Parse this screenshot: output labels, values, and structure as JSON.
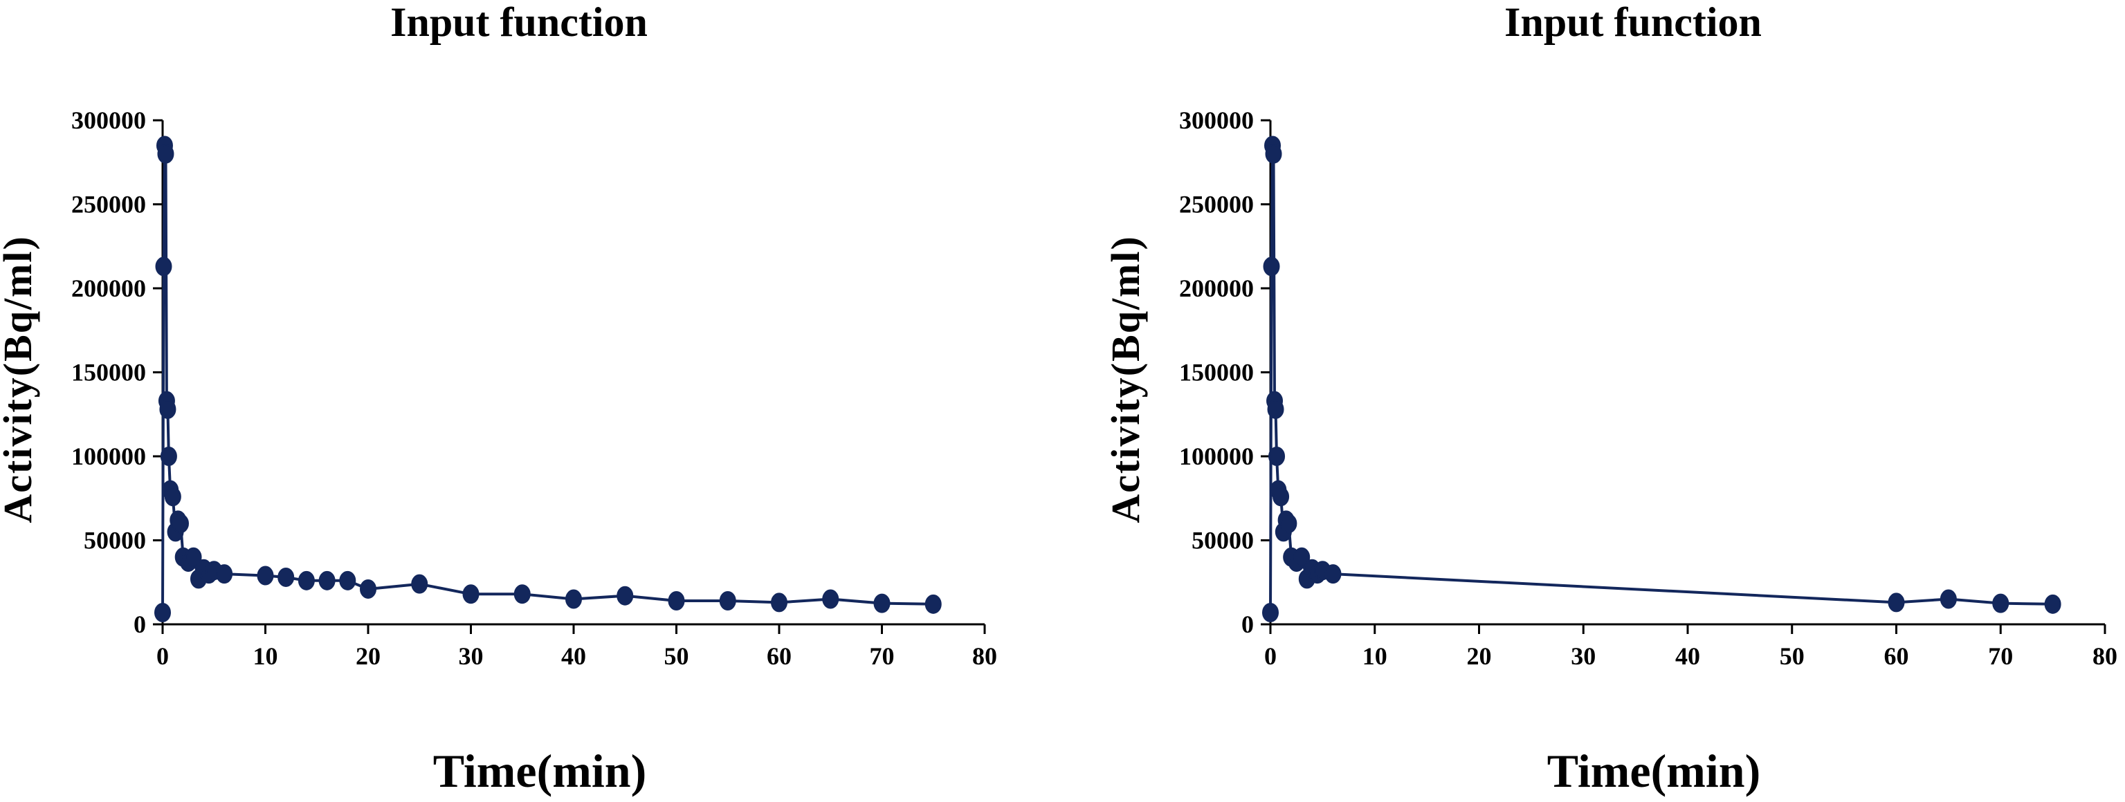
{
  "chart_data": [
    {
      "type": "line",
      "title": "Input function",
      "xlabel": "Time(min)",
      "ylabel": "Activity(Bq/ml)",
      "xlim": [
        0,
        80
      ],
      "ylim": [
        0,
        300000
      ],
      "xticks": [
        "0",
        "10",
        "20",
        "30",
        "40",
        "50",
        "60",
        "70",
        "80"
      ],
      "yticks": [
        "0",
        "50000",
        "100000",
        "150000",
        "200000",
        "250000",
        "300000"
      ],
      "grid": false,
      "colors": {
        "series": "#13275c"
      },
      "series": [
        {
          "x": [
            0,
            0.1,
            0.2,
            0.3,
            0.4,
            0.5,
            0.6,
            0.75,
            1,
            1.25,
            1.5,
            1.75,
            2,
            2.5,
            3,
            3.5,
            4,
            4.5,
            5,
            6,
            10,
            12,
            14,
            16,
            18,
            20,
            25,
            30,
            35,
            40,
            45,
            50,
            55,
            60,
            65,
            70,
            75
          ],
          "y": [
            7000,
            213000,
            285000,
            280000,
            133000,
            128000,
            100000,
            80000,
            76000,
            55000,
            62000,
            60000,
            40000,
            37000,
            40000,
            27000,
            33000,
            30000,
            32000,
            30000,
            29000,
            28000,
            26000,
            26000,
            26000,
            21000,
            24000,
            18000,
            18000,
            15000,
            17000,
            14000,
            14000,
            13000,
            15000,
            12500,
            12000
          ]
        }
      ]
    },
    {
      "type": "line",
      "title": "Input function",
      "xlabel": "Time(min)",
      "ylabel": "Activity(Bq/ml)",
      "xlim": [
        0,
        80
      ],
      "ylim": [
        0,
        300000
      ],
      "xticks": [
        "0",
        "10",
        "20",
        "30",
        "40",
        "50",
        "60",
        "70",
        "80"
      ],
      "yticks": [
        "0",
        "50000",
        "100000",
        "150000",
        "200000",
        "250000",
        "300000"
      ],
      "grid": false,
      "colors": {
        "series": "#13275c"
      },
      "series": [
        {
          "x": [
            0,
            0.1,
            0.2,
            0.3,
            0.4,
            0.5,
            0.6,
            0.75,
            1,
            1.25,
            1.5,
            1.75,
            2,
            2.5,
            3,
            3.5,
            4,
            4.5,
            5,
            6,
            60,
            65,
            70,
            75
          ],
          "y": [
            7000,
            213000,
            285000,
            280000,
            133000,
            128000,
            100000,
            80000,
            76000,
            55000,
            62000,
            60000,
            40000,
            37000,
            40000,
            27000,
            33000,
            30000,
            32000,
            30000,
            13000,
            15000,
            12500,
            12000
          ]
        }
      ]
    }
  ]
}
